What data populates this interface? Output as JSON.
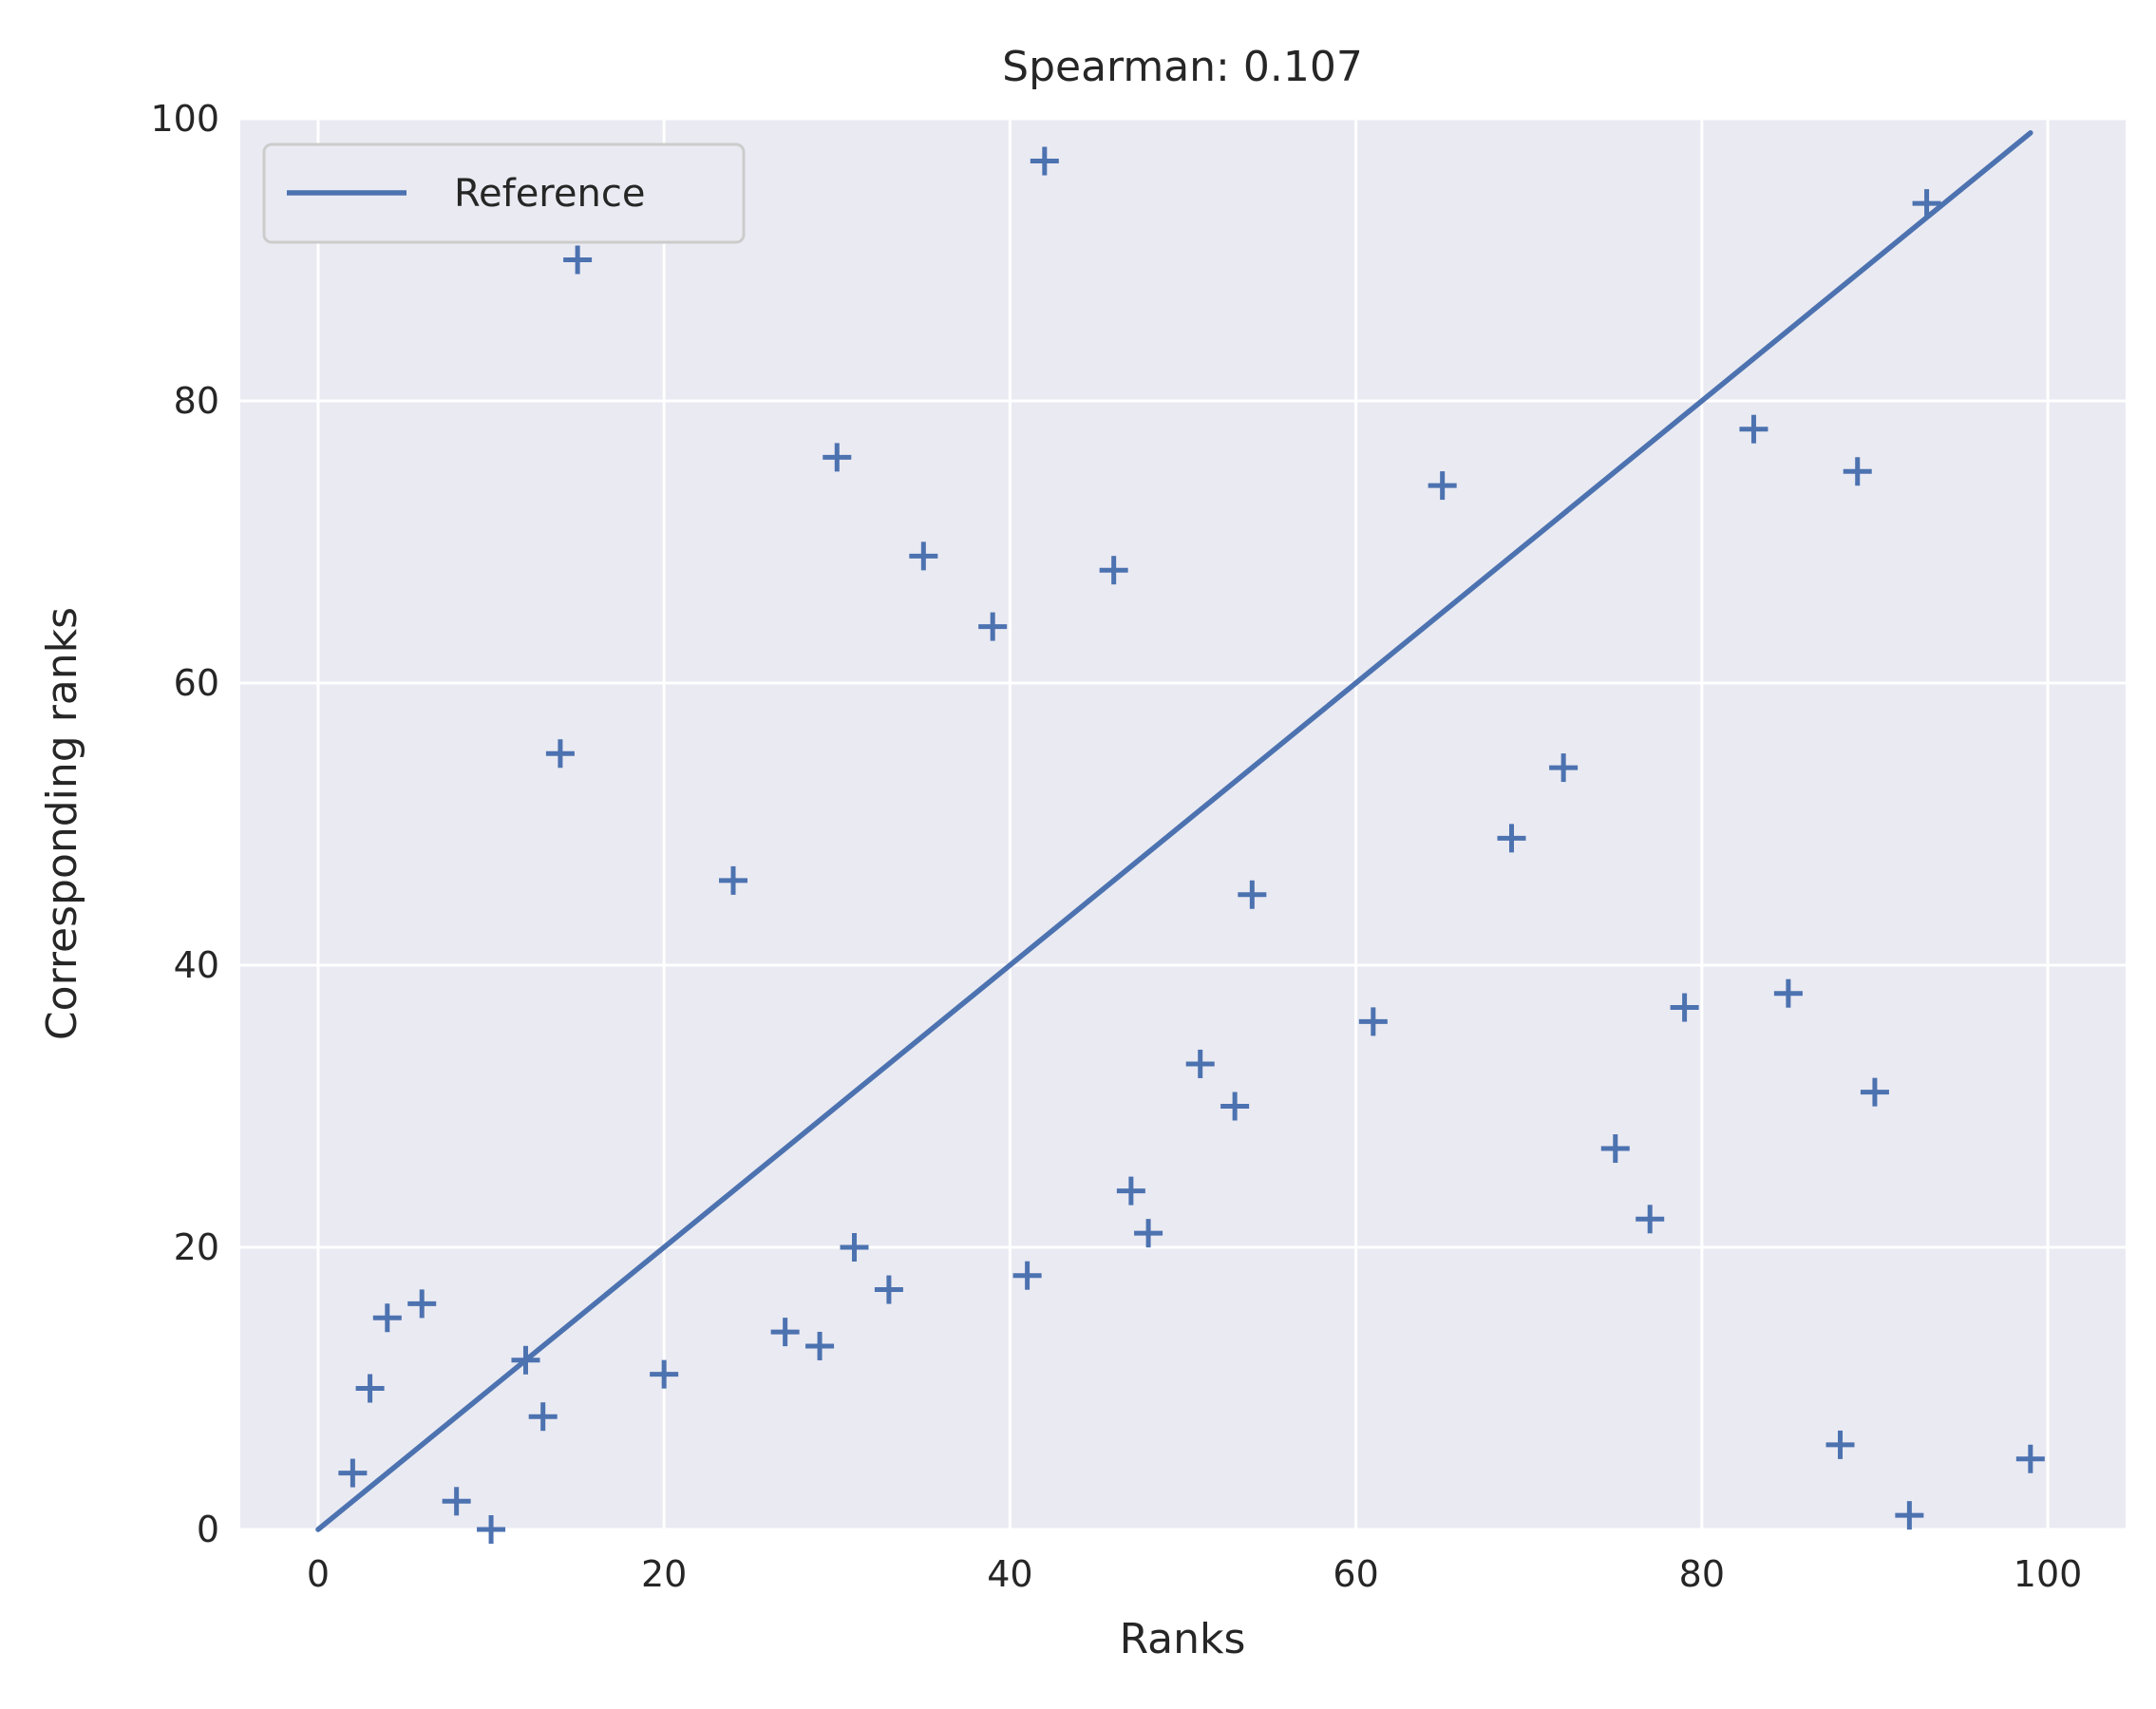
{
  "chart_data": {
    "type": "scatter",
    "title": "Spearman: 0.107",
    "xlabel": "Ranks",
    "ylabel": "Corresponding ranks",
    "xlim": [
      -4.5,
      104.5
    ],
    "ylim": [
      0,
      100
    ],
    "xticks": [
      0,
      20,
      40,
      60,
      80,
      100
    ],
    "yticks": [
      0,
      20,
      40,
      60,
      80,
      100
    ],
    "grid": true,
    "legend_position": "top-left",
    "colors": {
      "series": "#4c72b0",
      "plot_bg": "#eaeaf2",
      "grid": "#ffffff"
    },
    "series": [
      {
        "name": "",
        "marker": "plus",
        "points": [
          [
            2,
            4
          ],
          [
            3,
            10
          ],
          [
            4,
            15
          ],
          [
            6,
            16
          ],
          [
            8,
            2
          ],
          [
            10,
            0
          ],
          [
            12,
            12
          ],
          [
            13,
            8
          ],
          [
            14,
            55
          ],
          [
            15,
            90
          ],
          [
            20,
            11
          ],
          [
            24,
            46
          ],
          [
            27,
            14
          ],
          [
            29,
            13
          ],
          [
            30,
            76
          ],
          [
            31,
            20
          ],
          [
            33,
            17
          ],
          [
            35,
            69
          ],
          [
            39,
            64
          ],
          [
            41,
            18
          ],
          [
            42,
            97
          ],
          [
            46,
            68
          ],
          [
            47,
            24
          ],
          [
            48,
            21
          ],
          [
            51,
            33
          ],
          [
            53,
            30
          ],
          [
            54,
            45
          ],
          [
            61,
            36
          ],
          [
            65,
            74
          ],
          [
            69,
            49
          ],
          [
            72,
            54
          ],
          [
            75,
            27
          ],
          [
            77,
            22
          ],
          [
            79,
            37
          ],
          [
            83,
            78
          ],
          [
            85,
            38
          ],
          [
            88,
            6
          ],
          [
            89,
            75
          ],
          [
            90,
            31
          ],
          [
            92,
            1
          ],
          [
            93,
            94
          ],
          [
            99,
            5
          ]
        ]
      }
    ],
    "reference_line": {
      "name": "Reference",
      "from": [
        0,
        0
      ],
      "to": [
        99,
        99
      ]
    }
  }
}
